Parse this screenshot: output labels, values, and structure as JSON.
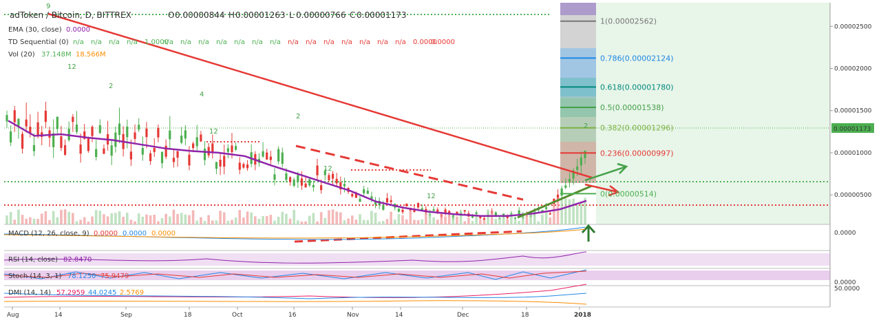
{
  "header": {
    "symbol": "adToken / Bitcoin, D, BITTREX",
    "ohlc": [
      {
        "key": "O",
        "value": "0.00000844"
      },
      {
        "key": "H",
        "value": "0.00001263"
      },
      {
        "key": "L",
        "value": "0.00000766"
      },
      {
        "key": "C",
        "value": "0.00001173"
      }
    ],
    "ema_label": "EMA (30, close)",
    "ema_value": "0.0000",
    "td_label": "TD Sequential (0)",
    "td_values": [
      "n/a",
      "n/a",
      "n/a",
      "n/a",
      "1.0000",
      "n/a",
      "n/a",
      "n/a",
      "n/a",
      "n/a",
      "n/a",
      "n/a",
      "n/a",
      "n/a",
      "n/a",
      "n/a",
      "n/a",
      "n/a",
      "n/a",
      "0.0000",
      "0.0000"
    ],
    "vol_label": "Vol (20)",
    "vol_values": [
      "37.148M",
      "18.566M"
    ]
  },
  "colors": {
    "up": "#4caf50",
    "down": "#e53935",
    "ema": "#8e24aa",
    "trend_red": "#e53935",
    "trend_green": "#4caf50",
    "fib_green_bg": "#e8f5e9"
  },
  "chart_data": {
    "type": "line",
    "title": "adToken / Bitcoin, D, BITTREX",
    "x_ticks": [
      "Aug",
      "14",
      "Sep",
      "18",
      "Oct",
      "16",
      "Nov",
      "14",
      "Dec",
      "18",
      "2018"
    ],
    "y_ticks": [
      "0.00002500",
      "0.00002000",
      "0.00001500",
      "0.00001000",
      "0.00000500"
    ],
    "ylim": [
      1.5e-06,
      2.78e-05
    ],
    "last_price": "0.00001173",
    "series": [
      {
        "name": "EMA (30, close)",
        "x": [
          "Aug 1",
          "Aug 7",
          "Aug 14",
          "Aug 21",
          "Aug 28",
          "Sep 4",
          "Sep 11",
          "Sep 18",
          "Sep 25",
          "Oct 2",
          "Oct 9",
          "Oct 16",
          "Oct 23",
          "Oct 30",
          "Nov 6",
          "Nov 13",
          "Nov 20",
          "Nov 27",
          "Dec 4",
          "Dec 11",
          "Dec 18",
          "Dec 25",
          "Jan 1"
        ],
        "values": [
          1.38e-05,
          1.2e-05,
          1.22e-05,
          1.18e-05,
          1.15e-05,
          1.1e-05,
          1.05e-05,
          1.02e-05,
          1e-05,
          9.6e-06,
          8.5e-06,
          7.5e-06,
          6.5e-06,
          5.5e-06,
          4.2e-06,
          3.5e-06,
          3e-06,
          2.7e-06,
          2.5e-06,
          2.5e-06,
          2.8e-06,
          3.3e-06,
          4.3e-06
        ]
      }
    ],
    "fib_levels": [
      {
        "label": "1(0.00002562)",
        "value": 2.562e-05
      },
      {
        "label": "0.786(0.00002124)",
        "value": 2.124e-05
      },
      {
        "label": "0.618(0.00001780)",
        "value": 1.78e-05
      },
      {
        "label": "0.5(0.00001538)",
        "value": 1.538e-05
      },
      {
        "label": "0.382(0.00001296)",
        "value": 1.296e-05
      },
      {
        "label": "0.236(0.00000997)",
        "value": 9.97e-06
      },
      {
        "label": "0(0.00000514)",
        "value": 5.14e-06
      }
    ],
    "td_labels": [
      "9",
      "12",
      "2",
      "4",
      "2",
      "2",
      "12",
      "12",
      "12"
    ]
  },
  "panels": {
    "macd": {
      "label": "MACD (12, 26, close, 9)",
      "values": [
        "0.0000",
        "0.0000",
        "0.0000"
      ],
      "axis": "0.0000"
    },
    "rsi": {
      "label": "RSI (14, close)",
      "value": "82.8470"
    },
    "stoch": {
      "label": "Stoch (14, 3, 1)",
      "values": [
        "78.1250",
        "75.9479"
      ],
      "axis": "0.0000"
    },
    "dmi": {
      "label": "DMI (14, 14)",
      "values": [
        "57.2959",
        "44.0245",
        "2.5769"
      ],
      "axis": "50.0000"
    }
  }
}
